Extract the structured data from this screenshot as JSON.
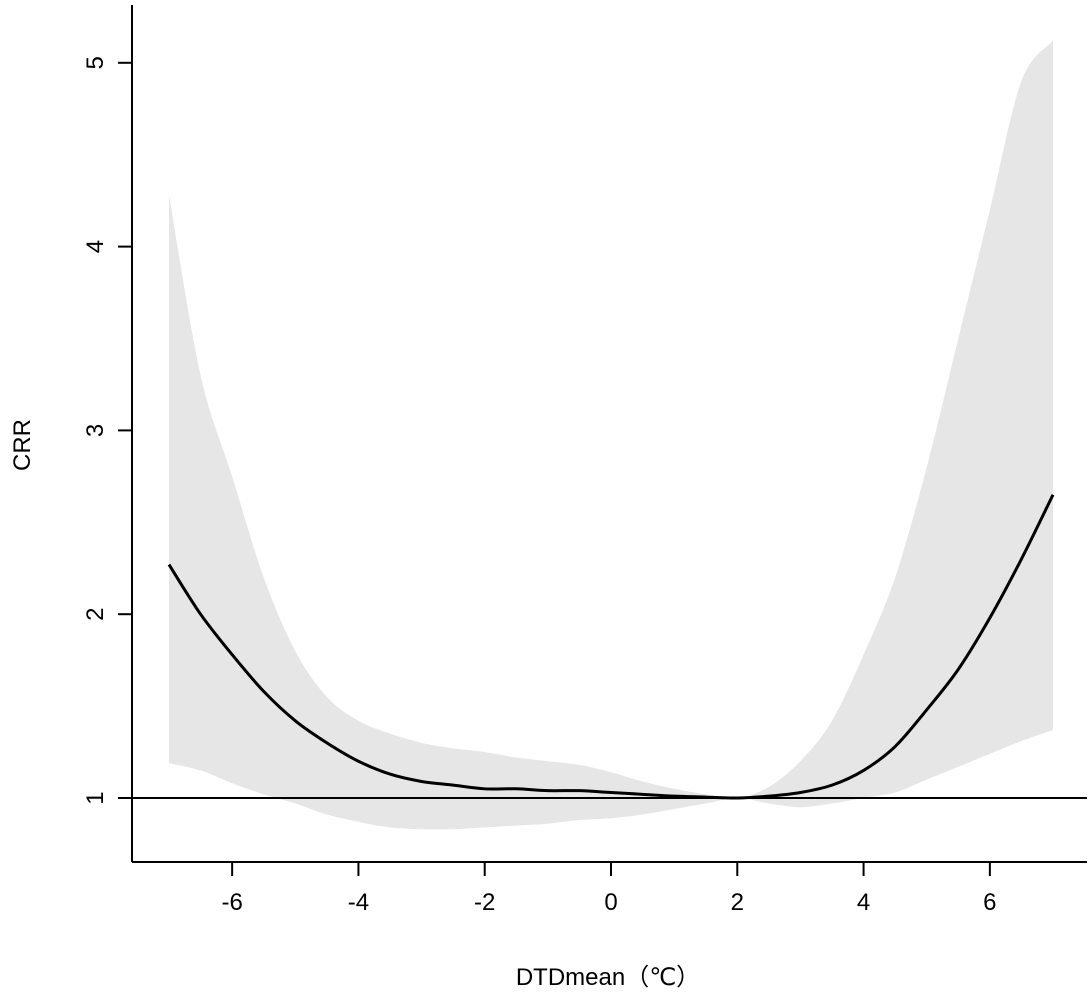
{
  "chart_data": {
    "type": "line",
    "xlabel": "DTDmean（℃）",
    "ylabel": "CRR",
    "xlim": [
      -7.0,
      7.0
    ],
    "ylim": [
      0.65,
      5.3
    ],
    "xticks": [
      -6,
      -4,
      -2,
      0,
      2,
      4,
      6
    ],
    "yticks": [
      1,
      2,
      3,
      4,
      5
    ],
    "reference_line_y": 1,
    "grid": false,
    "legend": "none",
    "colors": {
      "line": "#000000",
      "band": "#e6e6e6",
      "axis": "#000000"
    },
    "x": [
      -7.0,
      -6.5,
      -6.0,
      -5.5,
      -5.0,
      -4.5,
      -4.0,
      -3.5,
      -3.0,
      -2.5,
      -2.0,
      -1.5,
      -1.0,
      -0.5,
      0.0,
      0.5,
      1.0,
      1.5,
      2.0,
      2.5,
      3.0,
      3.5,
      4.0,
      4.5,
      5.0,
      5.5,
      6.0,
      6.5,
      7.0
    ],
    "crr": [
      2.27,
      2.0,
      1.78,
      1.58,
      1.42,
      1.3,
      1.2,
      1.13,
      1.09,
      1.07,
      1.05,
      1.05,
      1.04,
      1.04,
      1.03,
      1.02,
      1.01,
      1.005,
      1.0,
      1.01,
      1.03,
      1.07,
      1.15,
      1.28,
      1.48,
      1.7,
      1.98,
      2.3,
      2.65
    ],
    "lower": [
      1.19,
      1.15,
      1.08,
      1.02,
      0.97,
      0.91,
      0.87,
      0.84,
      0.83,
      0.83,
      0.84,
      0.85,
      0.86,
      0.88,
      0.89,
      0.91,
      0.94,
      0.97,
      1.0,
      0.97,
      0.95,
      0.97,
      1.0,
      1.03,
      1.1,
      1.17,
      1.24,
      1.31,
      1.37
    ],
    "upper": [
      4.28,
      3.3,
      2.75,
      2.2,
      1.8,
      1.55,
      1.42,
      1.35,
      1.3,
      1.27,
      1.25,
      1.22,
      1.2,
      1.18,
      1.14,
      1.09,
      1.05,
      1.02,
      1.0,
      1.06,
      1.2,
      1.42,
      1.78,
      2.2,
      2.8,
      3.5,
      4.2,
      4.9,
      5.12
    ]
  }
}
